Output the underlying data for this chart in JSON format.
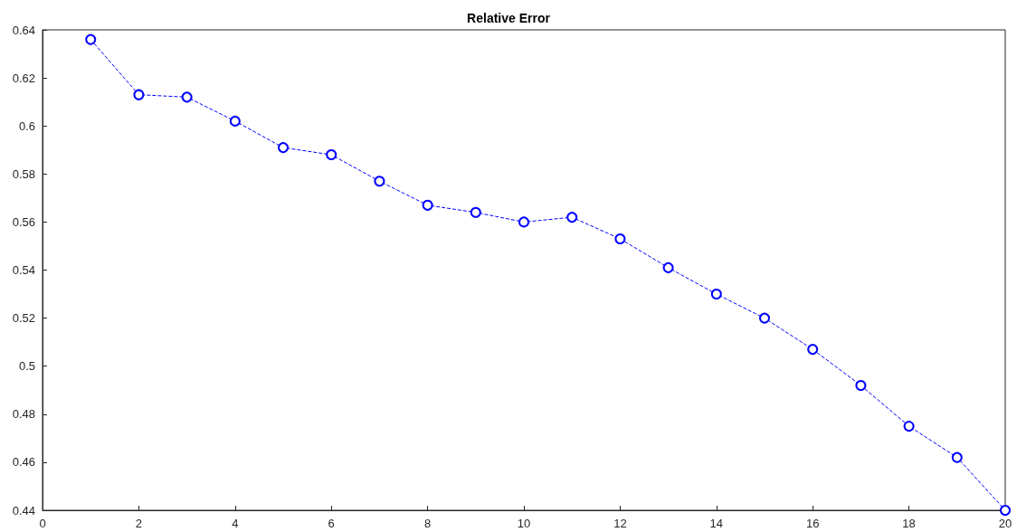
{
  "chart_data": {
    "type": "line",
    "title": "Relative Error",
    "x": [
      1,
      2,
      3,
      4,
      5,
      6,
      7,
      8,
      9,
      10,
      11,
      12,
      13,
      14,
      15,
      16,
      17,
      18,
      19,
      20
    ],
    "series": [
      {
        "color": "#0000ff",
        "values": [
          0.636,
          0.613,
          0.612,
          0.602,
          0.591,
          0.588,
          0.577,
          0.567,
          0.564,
          0.56,
          0.562,
          0.553,
          0.541,
          0.53,
          0.52,
          0.507,
          0.492,
          0.475,
          0.462,
          0.44
        ]
      }
    ],
    "xlim": [
      0,
      20
    ],
    "xticks": [
      0,
      2,
      4,
      6,
      8,
      10,
      12,
      14,
      16,
      18,
      20
    ],
    "ylim": [
      0.44,
      0.64
    ],
    "yticks": [
      0.44,
      0.46,
      0.48,
      0.5,
      0.52,
      0.54,
      0.56,
      0.58,
      0.6,
      0.62,
      0.64
    ],
    "grid": false,
    "marker": "circle",
    "line_style": "dashed"
  }
}
